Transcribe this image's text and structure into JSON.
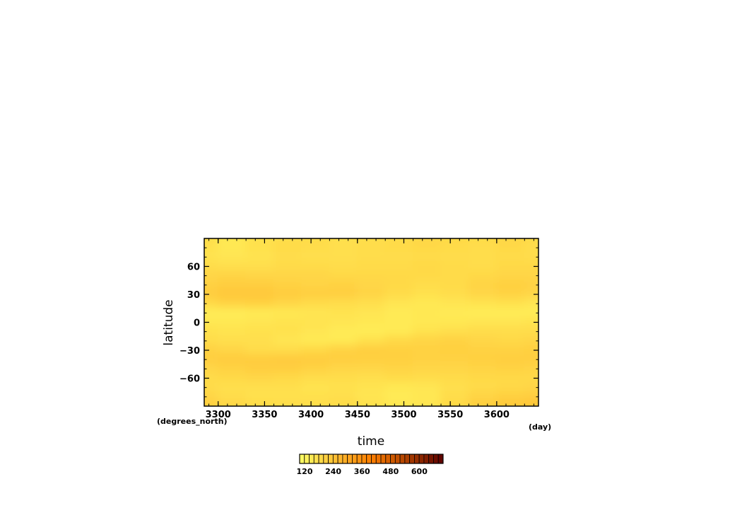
{
  "chart_data": {
    "type": "heatmap",
    "title": "",
    "xlabel": "time",
    "ylabel": "latitude",
    "x_units": "(day)",
    "y_units": "(degrees_north)",
    "xlim": [
      3285,
      3645
    ],
    "ylim": [
      -90,
      90
    ],
    "x_ticks": [
      3300,
      3350,
      3400,
      3450,
      3500,
      3550,
      3600
    ],
    "y_ticks": [
      60,
      30,
      0,
      -30,
      -60
    ],
    "y_tick_labels": [
      "60",
      "30",
      "0",
      "−30",
      "−60"
    ],
    "colorbar": {
      "range": [
        120,
        720
      ],
      "ticks": [
        120,
        240,
        360,
        480,
        600
      ],
      "n_levels": 30,
      "colors": {
        "low": "#ffff66",
        "mid": "#ff7f00",
        "high": "#5a0000"
      }
    },
    "field_description_values": {
      "latitudes": [
        90,
        80,
        70,
        60,
        50,
        40,
        30,
        20,
        10,
        0,
        -10,
        -20,
        -30,
        -40,
        -50,
        -60,
        -70,
        -80,
        -90
      ],
      "times": [
        3285,
        3315,
        3345,
        3375,
        3405,
        3435,
        3465,
        3495,
        3525,
        3555,
        3585,
        3615,
        3645
      ],
      "values": [
        [
          200,
          175,
          190,
          200,
          205,
          195,
          200,
          205,
          215,
          210,
          205,
          215,
          205
        ],
        [
          190,
          175,
          190,
          205,
          200,
          195,
          200,
          205,
          210,
          205,
          200,
          210,
          200
        ],
        [
          185,
          180,
          185,
          200,
          195,
          195,
          200,
          200,
          205,
          200,
          200,
          205,
          200
        ],
        [
          200,
          195,
          195,
          205,
          205,
          200,
          205,
          205,
          210,
          205,
          200,
          210,
          210
        ],
        [
          215,
          220,
          215,
          215,
          215,
          210,
          210,
          210,
          210,
          205,
          210,
          215,
          215
        ],
        [
          225,
          235,
          235,
          225,
          220,
          225,
          215,
          210,
          200,
          205,
          220,
          230,
          225
        ],
        [
          240,
          250,
          250,
          240,
          235,
          235,
          220,
          205,
          190,
          200,
          215,
          225,
          215
        ],
        [
          210,
          225,
          230,
          215,
          205,
          200,
          195,
          180,
          175,
          180,
          185,
          190,
          180
        ],
        [
          165,
          165,
          170,
          175,
          180,
          185,
          180,
          170,
          175,
          170,
          165,
          165,
          165
        ],
        [
          175,
          175,
          180,
          185,
          185,
          180,
          175,
          170,
          175,
          175,
          180,
          180,
          185
        ],
        [
          190,
          185,
          190,
          190,
          180,
          170,
          165,
          170,
          185,
          195,
          200,
          200,
          200
        ],
        [
          200,
          195,
          195,
          180,
          170,
          170,
          190,
          210,
          220,
          225,
          215,
          210,
          215
        ],
        [
          225,
          215,
          200,
          200,
          210,
          225,
          235,
          230,
          225,
          230,
          225,
          225,
          230
        ],
        [
          235,
          240,
          240,
          245,
          240,
          235,
          230,
          230,
          225,
          225,
          230,
          235,
          235
        ],
        [
          215,
          225,
          235,
          235,
          225,
          215,
          215,
          220,
          215,
          215,
          220,
          225,
          220
        ],
        [
          205,
          210,
          215,
          210,
          200,
          200,
          195,
          205,
          200,
          205,
          210,
          210,
          210
        ],
        [
          205,
          195,
          195,
          195,
          185,
          190,
          185,
          175,
          180,
          195,
          205,
          210,
          215
        ],
        [
          215,
          200,
          190,
          190,
          190,
          195,
          180,
          170,
          175,
          200,
          220,
          230,
          235
        ],
        [
          235,
          215,
          205,
          200,
          200,
          205,
          190,
          175,
          180,
          210,
          235,
          250,
          255
        ]
      ]
    }
  }
}
